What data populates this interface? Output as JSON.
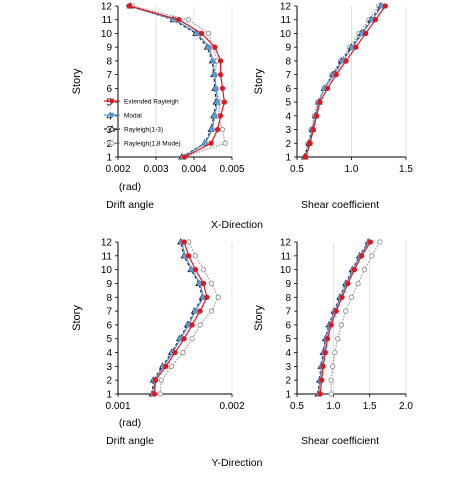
{
  "figure": {
    "section_labels": [
      "X-Direction",
      "Y-Direction"
    ]
  },
  "legend": [
    "Extended Rayleigh",
    "Modal",
    "Rayleigh(1-3)",
    "Rayleigh(1,8 Mode)"
  ],
  "series_styles": [
    {
      "name": "Extended Rayleigh",
      "color": "#e8141b",
      "marker": "filled-circle",
      "dash": "solid"
    },
    {
      "name": "Modal",
      "color": "#5b9bd5",
      "marker": "filled-circle",
      "dash": "solid"
    },
    {
      "name": "Rayleigh(1-3)",
      "color": "#1f2a44",
      "marker": "triangle",
      "dash": "dashed"
    },
    {
      "name": "Rayleigh(1,8 Mode)",
      "color": "#9a9a9a",
      "marker": "open-circle",
      "dash": "dotted"
    }
  ],
  "chart_data": [
    {
      "type": "line",
      "title": "",
      "xlabel": "Drift angle",
      "ylabel": "Story",
      "unit_label": "(rad)",
      "xlim": [
        0.002,
        0.005
      ],
      "ylim": [
        1,
        12
      ],
      "xticks": [
        "0.002",
        "0.003",
        "0.004",
        "0.005"
      ],
      "yticks": [
        "1",
        "2",
        "3",
        "4",
        "5",
        "6",
        "7",
        "8",
        "9",
        "10",
        "11",
        "12"
      ],
      "grid": true,
      "legend_position": "left",
      "y": [
        1,
        2,
        3,
        4,
        5,
        6,
        7,
        8,
        9,
        10,
        11,
        12
      ],
      "series": [
        {
          "name": "Extended Rayleigh",
          "values": [
            0.00375,
            0.00445,
            0.00462,
            0.0047,
            0.0048,
            0.00475,
            0.0047,
            0.0047,
            0.00455,
            0.0042,
            0.0036,
            0.0023
          ]
        },
        {
          "name": "Modal",
          "values": [
            0.00372,
            0.0043,
            0.00448,
            0.00455,
            0.00462,
            0.00458,
            0.00455,
            0.0045,
            0.0044,
            0.0041,
            0.0035,
            0.00228
          ]
        },
        {
          "name": "Rayleigh(1-3)",
          "values": [
            0.00368,
            0.00428,
            0.00445,
            0.00452,
            0.00458,
            0.00455,
            0.00452,
            0.00448,
            0.00435,
            0.00405,
            0.00345,
            0.00232
          ]
        },
        {
          "name": "Rayleigh(1,8 Mode)",
          "values": [
            0.00375,
            0.00482,
            0.00475,
            0.00465,
            0.00468,
            0.00458,
            0.00455,
            0.0046,
            0.0045,
            0.00438,
            0.00385,
            0.00238
          ]
        }
      ]
    },
    {
      "type": "line",
      "title": "",
      "xlabel": "Shear coefficient",
      "ylabel": "Story",
      "xlim": [
        0.5,
        1.5
      ],
      "ylim": [
        1,
        12
      ],
      "xticks": [
        "0.5",
        "1.0",
        "1.5"
      ],
      "yticks": [
        "1",
        "2",
        "3",
        "4",
        "5",
        "6",
        "7",
        "8",
        "9",
        "10",
        "11",
        "12"
      ],
      "grid": true,
      "y": [
        1,
        2,
        3,
        4,
        5,
        6,
        7,
        8,
        9,
        10,
        11,
        12
      ],
      "series": [
        {
          "name": "Extended Rayleigh",
          "values": [
            0.58,
            0.62,
            0.65,
            0.68,
            0.71,
            0.78,
            0.86,
            0.95,
            1.04,
            1.13,
            1.22,
            1.31
          ]
        },
        {
          "name": "Modal",
          "values": [
            0.58,
            0.62,
            0.64,
            0.67,
            0.7,
            0.75,
            0.84,
            0.92,
            1.01,
            1.1,
            1.19,
            1.28
          ]
        },
        {
          "name": "Rayleigh(1-3)",
          "values": [
            0.57,
            0.61,
            0.64,
            0.67,
            0.7,
            0.75,
            0.83,
            0.91,
            1.0,
            1.09,
            1.18,
            1.27
          ]
        },
        {
          "name": "Rayleigh(1,8 Mode)",
          "values": [
            0.57,
            0.6,
            0.63,
            0.66,
            0.69,
            0.75,
            0.82,
            0.9,
            0.98,
            1.07,
            1.16,
            1.25
          ]
        }
      ]
    },
    {
      "type": "line",
      "title": "",
      "xlabel": "Drift angle",
      "ylabel": "Story",
      "unit_label": "(rad)",
      "xlim": [
        0.001,
        0.002
      ],
      "ylim": [
        1,
        12
      ],
      "xticks": [
        "0.001",
        "0.002"
      ],
      "yticks": [
        "1",
        "2",
        "3",
        "4",
        "5",
        "6",
        "7",
        "8",
        "9",
        "10",
        "11",
        "12"
      ],
      "grid": true,
      "y": [
        1,
        2,
        3,
        4,
        5,
        6,
        7,
        8,
        9,
        10,
        11,
        12
      ],
      "series": [
        {
          "name": "Extended Rayleigh",
          "values": [
            0.00132,
            0.00133,
            0.00142,
            0.0015,
            0.00158,
            0.00165,
            0.00172,
            0.00178,
            0.00175,
            0.00168,
            0.00162,
            0.00158
          ]
        },
        {
          "name": "Modal",
          "values": [
            0.00131,
            0.00132,
            0.0014,
            0.00148,
            0.00155,
            0.00162,
            0.00168,
            0.00175,
            0.00172,
            0.00165,
            0.00159,
            0.00156
          ]
        },
        {
          "name": "Rayleigh(1-3)",
          "values": [
            0.0013,
            0.00131,
            0.00139,
            0.00147,
            0.00154,
            0.00161,
            0.00167,
            0.00174,
            0.00171,
            0.00164,
            0.00158,
            0.00155
          ]
        },
        {
          "name": "Rayleigh(1,8 Mode)",
          "values": [
            0.00137,
            0.00138,
            0.00147,
            0.00157,
            0.00165,
            0.00172,
            0.00182,
            0.00188,
            0.00182,
            0.00175,
            0.00168,
            0.00162
          ]
        }
      ]
    },
    {
      "type": "line",
      "title": "",
      "xlabel": "Shear coefficient",
      "ylabel": "Story",
      "xlim": [
        0.5,
        2.0
      ],
      "ylim": [
        1,
        12
      ],
      "xticks": [
        "0.5",
        "1.0",
        "1.5",
        "2.0"
      ],
      "yticks": [
        "1",
        "2",
        "3",
        "4",
        "5",
        "6",
        "7",
        "8",
        "9",
        "10",
        "11",
        "12"
      ],
      "grid": true,
      "y": [
        1,
        2,
        3,
        4,
        5,
        6,
        7,
        8,
        9,
        10,
        11,
        12
      ],
      "series": [
        {
          "name": "Extended Rayleigh",
          "values": [
            0.82,
            0.84,
            0.86,
            0.89,
            0.92,
            0.97,
            1.04,
            1.12,
            1.2,
            1.29,
            1.39,
            1.51
          ]
        },
        {
          "name": "Modal",
          "values": [
            0.8,
            0.82,
            0.84,
            0.87,
            0.9,
            0.95,
            1.02,
            1.1,
            1.18,
            1.27,
            1.37,
            1.49
          ]
        },
        {
          "name": "Rayleigh(1-3)",
          "values": [
            0.79,
            0.81,
            0.83,
            0.86,
            0.89,
            0.94,
            1.01,
            1.09,
            1.17,
            1.26,
            1.36,
            1.48
          ]
        },
        {
          "name": "Rayleigh(1,8 Mode)",
          "values": [
            0.97,
            0.97,
            0.99,
            1.02,
            1.06,
            1.11,
            1.17,
            1.25,
            1.34,
            1.43,
            1.53,
            1.64
          ]
        }
      ]
    }
  ]
}
